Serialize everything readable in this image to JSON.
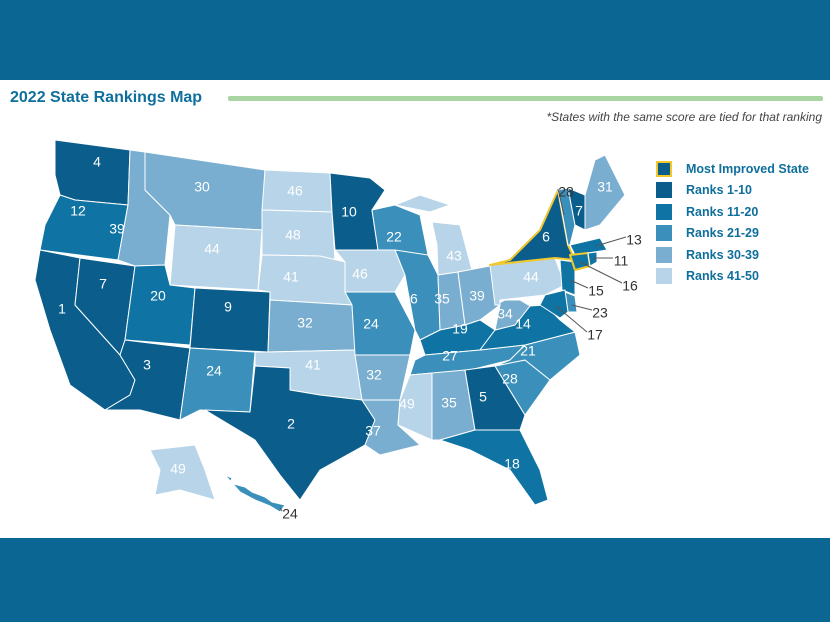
{
  "header": {
    "title": "2022 State Rankings Map",
    "note": "*States with the same score are tied for that ranking"
  },
  "colors": {
    "background": "#0b6694",
    "tier_1_10": "#0b5e8c",
    "tier_11_20": "#0f74a3",
    "tier_21_29": "#3a8fbb",
    "tier_30_39": "#79aed0",
    "tier_41_50": "#b7d4e8",
    "most_improved_outline": "#f2c82f",
    "title_rule": "#a8d5a2"
  },
  "legend": [
    {
      "label": "Most Improved State",
      "color": "#0b5e8c",
      "outline": "#f2c82f"
    },
    {
      "label": "Ranks 1-10",
      "color": "#0b5e8c"
    },
    {
      "label": "Ranks 11-20",
      "color": "#0f74a3"
    },
    {
      "label": "Ranks 21-29",
      "color": "#3a8fbb"
    },
    {
      "label": "Ranks 30-39",
      "color": "#79aed0"
    },
    {
      "label": "Ranks 41-50",
      "color": "#b7d4e8"
    }
  ],
  "most_improved": "NY",
  "states": {
    "WA": "4",
    "OR": "12",
    "CA": "1",
    "NV": "7",
    "ID": "39",
    "MT": "30",
    "WY": "44",
    "UT": "20",
    "CO": "9",
    "AZ": "3",
    "NM": "24",
    "ND": "46",
    "SD": "48",
    "NE": "41",
    "KS": "32",
    "OK": "41",
    "TX": "2",
    "MN": "10",
    "IA": "46",
    "MO": "24",
    "AR": "32",
    "LA": "37",
    "WI": "22",
    "IL": "26",
    "MI": "43",
    "IN": "35",
    "OH": "39",
    "KY": "19",
    "TN": "27",
    "MS": "49",
    "AL": "35",
    "GA": "5",
    "FL": "18",
    "SC": "28",
    "NC": "21",
    "VA": "14",
    "WV": "34",
    "PA": "44",
    "NY": "6",
    "NJ": "15",
    "DE": "23",
    "MD": "17",
    "VT": "28",
    "NH": "7",
    "ME": "31",
    "MA": "13",
    "CT": "16",
    "RI": "11",
    "AK": "49",
    "HI": "24"
  }
}
